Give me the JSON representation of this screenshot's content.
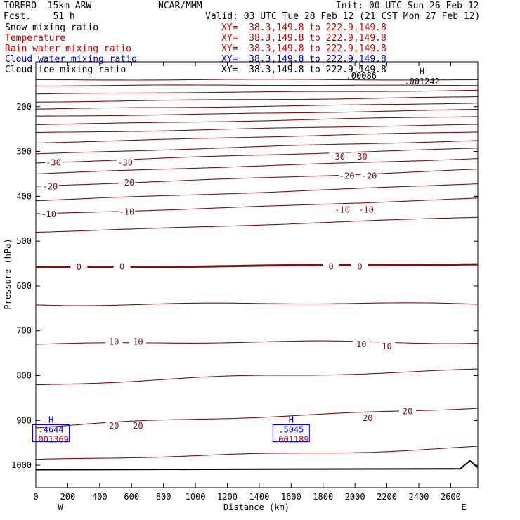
{
  "header": {
    "model": "TORERO  15km ARW",
    "center": "NCAR/MMM",
    "init": "Init: 00 UTC Sun 26 Feb 12",
    "fcst": "Fcst.    51 h",
    "valid": "Valid: 03 UTC Tue 28 Feb 12 (21 CST Mon 27 Feb 12)"
  },
  "fields": [
    {
      "label": "Snow mixing ratio",
      "xy": "XY=  38.3,149.8 to 222.9,149.8",
      "color": "#000000"
    },
    {
      "label": "Temperature",
      "xy": "XY=  38.3,149.8 to 222.9,149.8",
      "color": "#cc0000"
    },
    {
      "label": "Rain water mixing ratio",
      "xy": "XY=  38.3,149.8 to 222.9,149.8",
      "color": "#cc0000"
    },
    {
      "label": "Cloud water mixing ratio",
      "xy": "XY=  38.3,149.8 to 222.9,149.8",
      "color": "#0000cc"
    },
    {
      "label": "Cloud ice mixing ratio",
      "xy": "XY=  38.3,149.8 to 222.9,149.8",
      "color": "#000000"
    }
  ],
  "chart_data": {
    "type": "line",
    "title": "",
    "xlabel": "Distance (km)",
    "ylabel": "Pressure (hPa)",
    "xlim": [
      0,
      2770
    ],
    "ylim": [
      1050,
      100
    ],
    "xticks": [
      0,
      200,
      400,
      600,
      800,
      1000,
      1200,
      1400,
      1600,
      1800,
      2000,
      2200,
      2400,
      2600
    ],
    "yticks": [
      200,
      300,
      400,
      500,
      600,
      700,
      800,
      900,
      1000
    ],
    "end_labels": {
      "left": "W",
      "right": "E"
    },
    "grid": false,
    "colors": {
      "temperature": "#7a1010",
      "ground": "#000000",
      "cloud_water": "#0000cc",
      "rain": "#cc0000"
    },
    "isotherms": [
      {
        "t": -80,
        "left": 140,
        "right": 140
      },
      {
        "t": -75,
        "left": 153,
        "right": 152
      },
      {
        "t": -70,
        "left": 172,
        "right": 163
      },
      {
        "t": -65,
        "left": 190,
        "right": 178
      },
      {
        "t": -60,
        "left": 206,
        "right": 192
      },
      {
        "t": -55,
        "left": 222,
        "right": 207
      },
      {
        "t": -50,
        "left": 240,
        "right": 222
      },
      {
        "t": -45,
        "left": 258,
        "right": 240
      },
      {
        "t": -40,
        "left": 280,
        "right": 256
      },
      {
        "t": -35,
        "left": 305,
        "right": 275
      },
      {
        "t": -30,
        "left": 325,
        "right": 292
      },
      {
        "t": -25,
        "left": 350,
        "right": 315
      },
      {
        "t": -20,
        "left": 378,
        "right": 340
      },
      {
        "t": -15,
        "left": 410,
        "right": 372
      },
      {
        "t": -10,
        "left": 440,
        "right": 405
      },
      {
        "t": -5,
        "left": 480,
        "right": 447
      },
      {
        "t": 0,
        "left": 558,
        "right": 552
      },
      {
        "t": 5,
        "left": 640,
        "right": 640
      },
      {
        "t": 10,
        "left": 728,
        "right": 725
      },
      {
        "t": 15,
        "left": 820,
        "right": 785
      },
      {
        "t": 20,
        "left": 915,
        "right": 870
      },
      {
        "t": 25,
        "left": 990,
        "right": 960
      }
    ],
    "isotherm_labels": [
      {
        "text": "-30",
        "x": 110,
        "p": 325
      },
      {
        "text": "-30",
        "x": 560,
        "p": 325
      },
      {
        "text": "-30",
        "x": 1890,
        "p": 312
      },
      {
        "text": "-30",
        "x": 2030,
        "p": 312
      },
      {
        "text": "-20",
        "x": 90,
        "p": 378
      },
      {
        "text": "-20",
        "x": 570,
        "p": 370
      },
      {
        "text": "-20",
        "x": 1950,
        "p": 355
      },
      {
        "text": "-20",
        "x": 2090,
        "p": 355
      },
      {
        "text": "-10",
        "x": 80,
        "p": 440
      },
      {
        "text": "-10",
        "x": 570,
        "p": 435
      },
      {
        "text": "-10",
        "x": 1920,
        "p": 430
      },
      {
        "text": "-10",
        "x": 2070,
        "p": 430
      },
      {
        "text": "0",
        "x": 270,
        "p": 558
      },
      {
        "text": "0",
        "x": 540,
        "p": 557
      },
      {
        "text": "0",
        "x": 1850,
        "p": 557
      },
      {
        "text": "0",
        "x": 2030,
        "p": 557
      },
      {
        "text": "10",
        "x": 490,
        "p": 725
      },
      {
        "text": "10",
        "x": 640,
        "p": 725
      },
      {
        "text": "10",
        "x": 2040,
        "p": 730
      },
      {
        "text": "10",
        "x": 2200,
        "p": 735
      },
      {
        "text": "20",
        "x": 490,
        "p": 912
      },
      {
        "text": "20",
        "x": 640,
        "p": 912
      },
      {
        "text": "20",
        "x": 2080,
        "p": 895
      },
      {
        "text": "20",
        "x": 2330,
        "p": 880
      }
    ],
    "ground": {
      "x": [
        0,
        2660,
        2720,
        2770
      ],
      "p": [
        1010,
        1008,
        990,
        1005
      ]
    },
    "maxima": [
      {
        "x": 95,
        "p": 905,
        "label": "H",
        "values": [
          ".4644",
          ".001369"
        ]
      },
      {
        "x": 1600,
        "p": 905,
        "label": "H",
        "values": [
          ".5045",
          ".001189"
        ]
      },
      {
        "x": 2040,
        "p": 116,
        "label": "H",
        "values": [
          ".00086"
        ]
      },
      {
        "x": 2420,
        "p": 128,
        "label": "H",
        "values": [
          ".001242"
        ]
      }
    ]
  }
}
